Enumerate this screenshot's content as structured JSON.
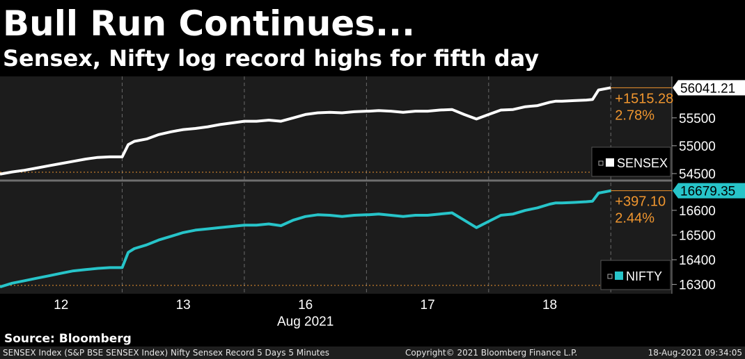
{
  "header": {
    "title": "Bull Run Continues...",
    "subtitle": "Sensex, Nifty log record highs for fifth day"
  },
  "source": "Source: Bloomberg",
  "footer": {
    "left": "SENSEX Index (S&P BSE SENSEX Index) Nifty Sensex Record 5 Days 5 Minutes",
    "middle": "Copyright© 2021 Bloomberg Finance L.P.",
    "right": "18-Aug-2021 09:34:05"
  },
  "colors": {
    "sensex": "#ffffff",
    "nifty": "#27c4c9",
    "change": "#f0962f",
    "background": "#1c1c1c"
  },
  "chart_data": [
    {
      "type": "line",
      "series": [
        {
          "name": "SENSEX",
          "x": [
            0,
            0.1,
            0.2,
            0.3,
            0.4,
            0.5,
            0.6,
            0.7,
            0.8,
            0.9,
            0.95,
            1.0,
            1.05,
            1.1,
            1.2,
            1.3,
            1.4,
            1.5,
            1.6,
            1.7,
            1.8,
            1.9,
            2.0,
            2.1,
            2.2,
            2.3,
            2.4,
            2.5,
            2.6,
            2.7,
            2.8,
            2.9,
            3.0,
            3.02,
            3.1,
            3.2,
            3.3,
            3.4,
            3.5,
            3.6,
            3.7,
            3.8,
            3.9,
            4.0,
            4.1,
            4.2,
            4.3,
            4.4,
            4.5,
            4.55,
            4.6,
            4.7,
            4.8,
            4.85,
            4.9,
            5.0
          ],
          "values": [
            54490,
            54530,
            54560,
            54600,
            54640,
            54680,
            54720,
            54760,
            54790,
            54800,
            54800,
            54800,
            55020,
            55080,
            55120,
            55200,
            55250,
            55290,
            55310,
            55340,
            55380,
            55410,
            55440,
            55440,
            55460,
            55440,
            55500,
            55560,
            55590,
            55600,
            55590,
            55610,
            55620,
            55620,
            55630,
            55620,
            55600,
            55620,
            55620,
            55640,
            55650,
            55560,
            55480,
            55560,
            55640,
            55650,
            55700,
            55720,
            55780,
            55800,
            55800,
            55810,
            55820,
            55830,
            56000,
            56041.21
          ]
        }
      ],
      "categories": [
        "12",
        "13",
        "16",
        "17",
        "18"
      ],
      "xlabel": "Aug 2021",
      "yticks": [
        54500,
        55000,
        55500
      ],
      "ylim": [
        54400,
        56220
      ],
      "last_value": "56041.21",
      "change_points": "+1515.28",
      "change_percent": "2.78%",
      "legend": "SENSEX",
      "legend_position": "bottom-right",
      "grid": "vertical dashed"
    },
    {
      "type": "line",
      "series": [
        {
          "name": "NIFTY",
          "x": [
            0,
            0.1,
            0.2,
            0.3,
            0.4,
            0.5,
            0.6,
            0.7,
            0.8,
            0.9,
            0.95,
            1.0,
            1.05,
            1.1,
            1.2,
            1.3,
            1.4,
            1.5,
            1.6,
            1.7,
            1.8,
            1.9,
            2.0,
            2.1,
            2.2,
            2.3,
            2.4,
            2.5,
            2.6,
            2.7,
            2.8,
            2.9,
            3.0,
            3.02,
            3.1,
            3.2,
            3.3,
            3.4,
            3.5,
            3.6,
            3.7,
            3.8,
            3.9,
            4.0,
            4.1,
            4.2,
            4.3,
            4.4,
            4.5,
            4.55,
            4.6,
            4.7,
            4.8,
            4.85,
            4.9,
            5.0
          ],
          "values": [
            16290,
            16305,
            16315,
            16325,
            16335,
            16345,
            16355,
            16360,
            16365,
            16368,
            16368,
            16368,
            16430,
            16445,
            16460,
            16480,
            16495,
            16510,
            16520,
            16525,
            16530,
            16535,
            16540,
            16540,
            16545,
            16538,
            16560,
            16575,
            16582,
            16580,
            16575,
            16580,
            16582,
            16582,
            16585,
            16580,
            16575,
            16580,
            16580,
            16585,
            16590,
            16560,
            16530,
            16555,
            16580,
            16585,
            16600,
            16610,
            16625,
            16630,
            16630,
            16632,
            16635,
            16637,
            16670,
            16679.35
          ]
        }
      ],
      "categories": [
        "12",
        "13",
        "16",
        "17",
        "18"
      ],
      "xlabel": "Aug 2021",
      "yticks": [
        16300,
        16400,
        16500,
        16600
      ],
      "ylim": [
        16268,
        16715
      ],
      "last_value": "16679.35",
      "change_points": "+397.10",
      "change_percent": "2.44%",
      "legend": "NIFTY",
      "legend_position": "bottom-right",
      "grid": "vertical dashed"
    }
  ]
}
